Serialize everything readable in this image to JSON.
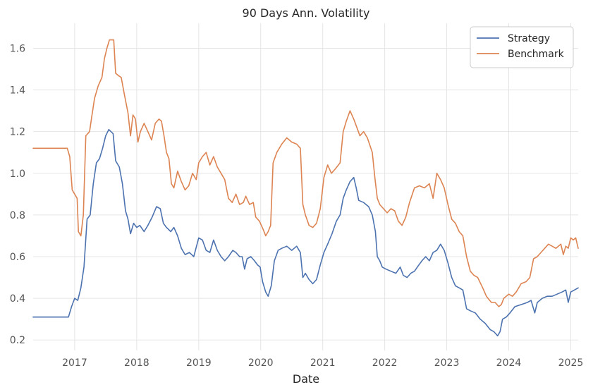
{
  "chart_data": {
    "type": "line",
    "title": "90 Days Ann. Volatility",
    "xlabel": "Date",
    "ylabel": "",
    "xlim": [
      2016.33,
      2025.12
    ],
    "ylim": [
      0.15,
      1.72
    ],
    "grid": true,
    "legend_position": "top-right",
    "x_ticks": [
      2017,
      2018,
      2019,
      2020,
      2021,
      2022,
      2023,
      2024,
      2025
    ],
    "x_tick_labels": [
      "2017",
      "2018",
      "2019",
      "2020",
      "2021",
      "2022",
      "2023",
      "2024",
      "2025"
    ],
    "y_ticks": [
      0.2,
      0.4,
      0.6,
      0.8,
      1.0,
      1.2,
      1.4,
      1.6
    ],
    "y_tick_labels": [
      "0.2",
      "0.4",
      "0.6",
      "0.8",
      "1.0",
      "1.2",
      "1.4",
      "1.6"
    ],
    "series": [
      {
        "name": "Strategy",
        "color": "#4c72b0",
        "points": [
          [
            2016.33,
            0.31
          ],
          [
            2016.9,
            0.31
          ],
          [
            2016.95,
            0.36
          ],
          [
            2017.0,
            0.4
          ],
          [
            2017.05,
            0.39
          ],
          [
            2017.1,
            0.45
          ],
          [
            2017.15,
            0.55
          ],
          [
            2017.2,
            0.78
          ],
          [
            2017.25,
            0.8
          ],
          [
            2017.3,
            0.95
          ],
          [
            2017.35,
            1.05
          ],
          [
            2017.4,
            1.07
          ],
          [
            2017.45,
            1.12
          ],
          [
            2017.5,
            1.18
          ],
          [
            2017.55,
            1.21
          ],
          [
            2017.62,
            1.19
          ],
          [
            2017.66,
            1.06
          ],
          [
            2017.72,
            1.03
          ],
          [
            2017.77,
            0.95
          ],
          [
            2017.82,
            0.82
          ],
          [
            2017.86,
            0.78
          ],
          [
            2017.9,
            0.71
          ],
          [
            2017.95,
            0.76
          ],
          [
            2018.0,
            0.74
          ],
          [
            2018.05,
            0.75
          ],
          [
            2018.12,
            0.72
          ],
          [
            2018.18,
            0.75
          ],
          [
            2018.25,
            0.79
          ],
          [
            2018.32,
            0.84
          ],
          [
            2018.38,
            0.83
          ],
          [
            2018.43,
            0.76
          ],
          [
            2018.48,
            0.74
          ],
          [
            2018.55,
            0.72
          ],
          [
            2018.6,
            0.74
          ],
          [
            2018.66,
            0.7
          ],
          [
            2018.72,
            0.64
          ],
          [
            2018.78,
            0.61
          ],
          [
            2018.85,
            0.62
          ],
          [
            2018.92,
            0.6
          ],
          [
            2019.0,
            0.69
          ],
          [
            2019.06,
            0.68
          ],
          [
            2019.12,
            0.63
          ],
          [
            2019.18,
            0.62
          ],
          [
            2019.24,
            0.68
          ],
          [
            2019.3,
            0.63
          ],
          [
            2019.36,
            0.6
          ],
          [
            2019.42,
            0.58
          ],
          [
            2019.48,
            0.6
          ],
          [
            2019.55,
            0.63
          ],
          [
            2019.6,
            0.62
          ],
          [
            2019.66,
            0.6
          ],
          [
            2019.7,
            0.6
          ],
          [
            2019.74,
            0.54
          ],
          [
            2019.78,
            0.59
          ],
          [
            2019.84,
            0.6
          ],
          [
            2019.9,
            0.58
          ],
          [
            2019.95,
            0.56
          ],
          [
            2019.99,
            0.55
          ],
          [
            2020.03,
            0.48
          ],
          [
            2020.08,
            0.43
          ],
          [
            2020.12,
            0.41
          ],
          [
            2020.17,
            0.46
          ],
          [
            2020.22,
            0.58
          ],
          [
            2020.28,
            0.63
          ],
          [
            2020.34,
            0.64
          ],
          [
            2020.42,
            0.65
          ],
          [
            2020.5,
            0.63
          ],
          [
            2020.58,
            0.65
          ],
          [
            2020.64,
            0.62
          ],
          [
            2020.68,
            0.5
          ],
          [
            2020.72,
            0.52
          ],
          [
            2020.78,
            0.49
          ],
          [
            2020.84,
            0.47
          ],
          [
            2020.9,
            0.49
          ],
          [
            2020.96,
            0.56
          ],
          [
            2021.02,
            0.62
          ],
          [
            2021.08,
            0.66
          ],
          [
            2021.15,
            0.71
          ],
          [
            2021.22,
            0.77
          ],
          [
            2021.28,
            0.8
          ],
          [
            2021.33,
            0.88
          ],
          [
            2021.38,
            0.92
          ],
          [
            2021.44,
            0.96
          ],
          [
            2021.5,
            0.98
          ],
          [
            2021.54,
            0.93
          ],
          [
            2021.58,
            0.87
          ],
          [
            2021.66,
            0.86
          ],
          [
            2021.74,
            0.84
          ],
          [
            2021.8,
            0.8
          ],
          [
            2021.85,
            0.72
          ],
          [
            2021.88,
            0.6
          ],
          [
            2021.92,
            0.58
          ],
          [
            2021.96,
            0.55
          ],
          [
            2022.02,
            0.54
          ],
          [
            2022.1,
            0.53
          ],
          [
            2022.18,
            0.52
          ],
          [
            2022.25,
            0.55
          ],
          [
            2022.3,
            0.51
          ],
          [
            2022.36,
            0.5
          ],
          [
            2022.42,
            0.52
          ],
          [
            2022.48,
            0.53
          ],
          [
            2022.55,
            0.56
          ],
          [
            2022.6,
            0.58
          ],
          [
            2022.66,
            0.6
          ],
          [
            2022.72,
            0.58
          ],
          [
            2022.78,
            0.62
          ],
          [
            2022.84,
            0.63
          ],
          [
            2022.9,
            0.66
          ],
          [
            2022.96,
            0.63
          ],
          [
            2023.02,
            0.57
          ],
          [
            2023.08,
            0.5
          ],
          [
            2023.14,
            0.46
          ],
          [
            2023.2,
            0.45
          ],
          [
            2023.26,
            0.44
          ],
          [
            2023.32,
            0.35
          ],
          [
            2023.38,
            0.34
          ],
          [
            2023.46,
            0.33
          ],
          [
            2023.54,
            0.3
          ],
          [
            2023.62,
            0.28
          ],
          [
            2023.7,
            0.25
          ],
          [
            2023.76,
            0.24
          ],
          [
            2023.82,
            0.22
          ],
          [
            2023.86,
            0.24
          ],
          [
            2023.9,
            0.3
          ],
          [
            2023.96,
            0.31
          ],
          [
            2024.02,
            0.33
          ],
          [
            2024.1,
            0.36
          ],
          [
            2024.2,
            0.37
          ],
          [
            2024.3,
            0.38
          ],
          [
            2024.36,
            0.39
          ],
          [
            2024.42,
            0.33
          ],
          [
            2024.46,
            0.38
          ],
          [
            2024.54,
            0.4
          ],
          [
            2024.62,
            0.41
          ],
          [
            2024.7,
            0.41
          ],
          [
            2024.78,
            0.42
          ],
          [
            2024.86,
            0.43
          ],
          [
            2024.92,
            0.44
          ],
          [
            2024.96,
            0.38
          ],
          [
            2025.0,
            0.43
          ],
          [
            2025.06,
            0.44
          ],
          [
            2025.12,
            0.45
          ]
        ]
      },
      {
        "name": "Benchmark",
        "color": "#dd8452",
        "points": [
          [
            2016.33,
            1.12
          ],
          [
            2016.88,
            1.12
          ],
          [
            2016.92,
            1.08
          ],
          [
            2016.96,
            0.92
          ],
          [
            2017.0,
            0.9
          ],
          [
            2017.04,
            0.88
          ],
          [
            2017.06,
            0.72
          ],
          [
            2017.1,
            0.7
          ],
          [
            2017.14,
            0.8
          ],
          [
            2017.18,
            1.18
          ],
          [
            2017.24,
            1.2
          ],
          [
            2017.28,
            1.28
          ],
          [
            2017.32,
            1.36
          ],
          [
            2017.38,
            1.42
          ],
          [
            2017.44,
            1.46
          ],
          [
            2017.48,
            1.55
          ],
          [
            2017.52,
            1.6
          ],
          [
            2017.56,
            1.64
          ],
          [
            2017.63,
            1.64
          ],
          [
            2017.66,
            1.48
          ],
          [
            2017.7,
            1.47
          ],
          [
            2017.75,
            1.46
          ],
          [
            2017.8,
            1.38
          ],
          [
            2017.86,
            1.29
          ],
          [
            2017.9,
            1.18
          ],
          [
            2017.94,
            1.28
          ],
          [
            2017.98,
            1.26
          ],
          [
            2018.02,
            1.15
          ],
          [
            2018.06,
            1.2
          ],
          [
            2018.12,
            1.24
          ],
          [
            2018.18,
            1.2
          ],
          [
            2018.24,
            1.16
          ],
          [
            2018.3,
            1.24
          ],
          [
            2018.36,
            1.26
          ],
          [
            2018.4,
            1.25
          ],
          [
            2018.44,
            1.18
          ],
          [
            2018.48,
            1.1
          ],
          [
            2018.52,
            1.07
          ],
          [
            2018.56,
            0.95
          ],
          [
            2018.6,
            0.93
          ],
          [
            2018.66,
            1.01
          ],
          [
            2018.72,
            0.96
          ],
          [
            2018.78,
            0.92
          ],
          [
            2018.84,
            0.94
          ],
          [
            2018.9,
            1.0
          ],
          [
            2018.96,
            0.97
          ],
          [
            2019.0,
            1.05
          ],
          [
            2019.06,
            1.08
          ],
          [
            2019.12,
            1.1
          ],
          [
            2019.18,
            1.04
          ],
          [
            2019.24,
            1.08
          ],
          [
            2019.3,
            1.03
          ],
          [
            2019.36,
            1.0
          ],
          [
            2019.42,
            0.97
          ],
          [
            2019.48,
            0.88
          ],
          [
            2019.54,
            0.86
          ],
          [
            2019.6,
            0.9
          ],
          [
            2019.66,
            0.85
          ],
          [
            2019.72,
            0.86
          ],
          [
            2019.76,
            0.89
          ],
          [
            2019.82,
            0.85
          ],
          [
            2019.88,
            0.86
          ],
          [
            2019.92,
            0.79
          ],
          [
            2019.98,
            0.77
          ],
          [
            2020.04,
            0.73
          ],
          [
            2020.08,
            0.7
          ],
          [
            2020.12,
            0.72
          ],
          [
            2020.16,
            0.75
          ],
          [
            2020.2,
            1.05
          ],
          [
            2020.26,
            1.1
          ],
          [
            2020.34,
            1.14
          ],
          [
            2020.42,
            1.17
          ],
          [
            2020.5,
            1.15
          ],
          [
            2020.58,
            1.14
          ],
          [
            2020.64,
            1.12
          ],
          [
            2020.68,
            0.85
          ],
          [
            2020.72,
            0.8
          ],
          [
            2020.78,
            0.75
          ],
          [
            2020.84,
            0.74
          ],
          [
            2020.9,
            0.76
          ],
          [
            2020.96,
            0.83
          ],
          [
            2021.02,
            0.98
          ],
          [
            2021.08,
            1.04
          ],
          [
            2021.14,
            1.0
          ],
          [
            2021.2,
            1.02
          ],
          [
            2021.28,
            1.05
          ],
          [
            2021.33,
            1.2
          ],
          [
            2021.38,
            1.25
          ],
          [
            2021.44,
            1.3
          ],
          [
            2021.5,
            1.26
          ],
          [
            2021.55,
            1.22
          ],
          [
            2021.6,
            1.18
          ],
          [
            2021.66,
            1.2
          ],
          [
            2021.72,
            1.17
          ],
          [
            2021.8,
            1.1
          ],
          [
            2021.84,
            0.98
          ],
          [
            2021.88,
            0.88
          ],
          [
            2021.92,
            0.85
          ],
          [
            2021.98,
            0.83
          ],
          [
            2022.04,
            0.81
          ],
          [
            2022.1,
            0.83
          ],
          [
            2022.16,
            0.82
          ],
          [
            2022.22,
            0.77
          ],
          [
            2022.28,
            0.75
          ],
          [
            2022.34,
            0.79
          ],
          [
            2022.4,
            0.86
          ],
          [
            2022.48,
            0.93
          ],
          [
            2022.56,
            0.94
          ],
          [
            2022.64,
            0.93
          ],
          [
            2022.72,
            0.95
          ],
          [
            2022.78,
            0.88
          ],
          [
            2022.84,
            1.0
          ],
          [
            2022.9,
            0.97
          ],
          [
            2022.96,
            0.93
          ],
          [
            2023.02,
            0.85
          ],
          [
            2023.08,
            0.78
          ],
          [
            2023.14,
            0.76
          ],
          [
            2023.2,
            0.72
          ],
          [
            2023.26,
            0.7
          ],
          [
            2023.32,
            0.6
          ],
          [
            2023.38,
            0.53
          ],
          [
            2023.44,
            0.51
          ],
          [
            2023.5,
            0.5
          ],
          [
            2023.58,
            0.45
          ],
          [
            2023.64,
            0.41
          ],
          [
            2023.72,
            0.38
          ],
          [
            2023.78,
            0.38
          ],
          [
            2023.84,
            0.36
          ],
          [
            2023.88,
            0.37
          ],
          [
            2023.92,
            0.4
          ],
          [
            2024.0,
            0.42
          ],
          [
            2024.06,
            0.41
          ],
          [
            2024.12,
            0.43
          ],
          [
            2024.2,
            0.47
          ],
          [
            2024.28,
            0.48
          ],
          [
            2024.34,
            0.5
          ],
          [
            2024.4,
            0.59
          ],
          [
            2024.46,
            0.6
          ],
          [
            2024.52,
            0.62
          ],
          [
            2024.58,
            0.64
          ],
          [
            2024.64,
            0.66
          ],
          [
            2024.7,
            0.65
          ],
          [
            2024.76,
            0.64
          ],
          [
            2024.84,
            0.66
          ],
          [
            2024.88,
            0.61
          ],
          [
            2024.92,
            0.65
          ],
          [
            2024.96,
            0.64
          ],
          [
            2025.0,
            0.69
          ],
          [
            2025.04,
            0.68
          ],
          [
            2025.08,
            0.69
          ],
          [
            2025.12,
            0.64
          ]
        ]
      }
    ]
  }
}
